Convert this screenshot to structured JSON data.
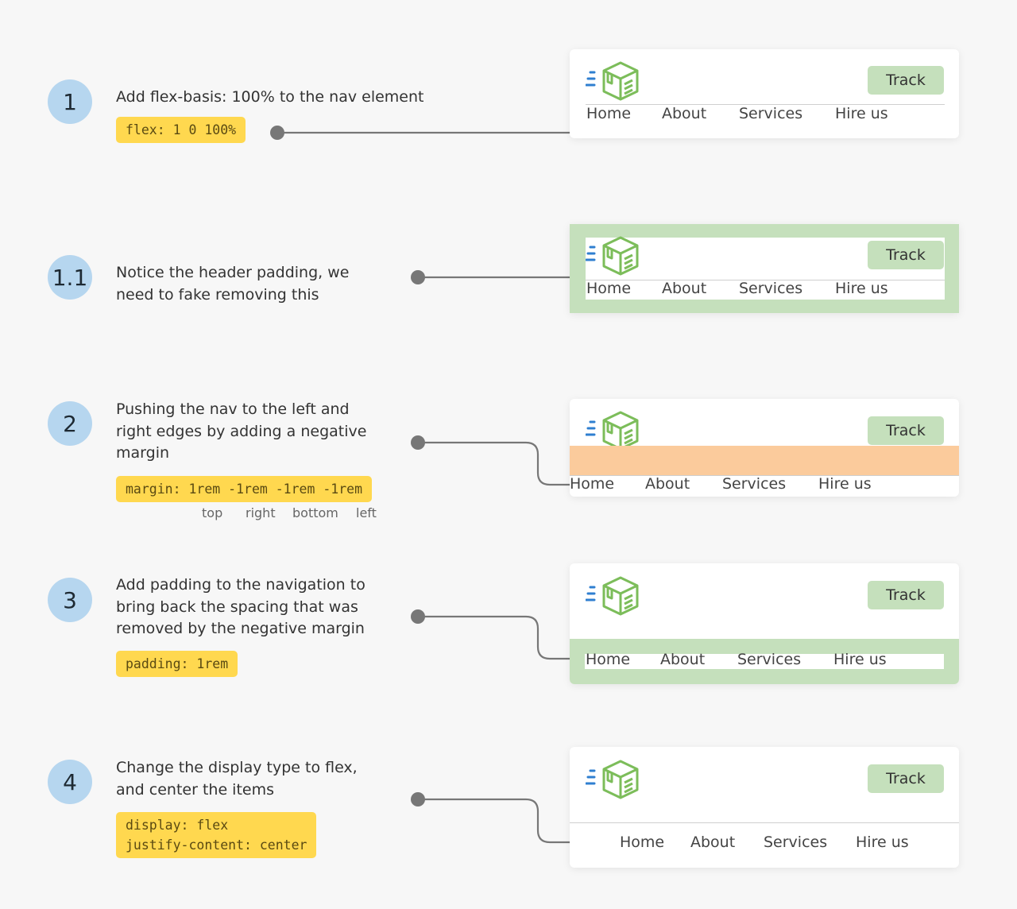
{
  "colors": {
    "background": "#f7f7f7",
    "step_badge": "#b6d6ef",
    "code_highlight": "#ffd84f",
    "green_padding": "#c5e0bc",
    "orange_margin": "#fbcb9c",
    "logo_green": "#7cbd5a",
    "logo_blue": "#2f7fd0"
  },
  "header": {
    "track_label": "Track",
    "nav": [
      "Home",
      "About",
      "Services",
      "Hire us"
    ],
    "logo_icon": "package-box-icon"
  },
  "steps": [
    {
      "number": "1",
      "text": "Add flex-basis: 100% to the nav element",
      "code": "flex: 1 0 100%"
    },
    {
      "number": "1.1",
      "text": "Notice the header padding, we need to fake removing this",
      "code": ""
    },
    {
      "number": "2",
      "text": "Pushing the nav to the left and right edges by adding a negative margin",
      "code": "margin: 1rem -1rem -1rem -1rem",
      "code_labels": [
        "top",
        "right",
        "bottom",
        "left"
      ]
    },
    {
      "number": "3",
      "text": "Add padding to the navigation to bring back the spacing that was removed by the negative margin",
      "code": "padding: 1rem"
    },
    {
      "number": "4",
      "text": "Change the display type to flex, and center the items",
      "code": "display: flex\njustify-content: center"
    }
  ]
}
